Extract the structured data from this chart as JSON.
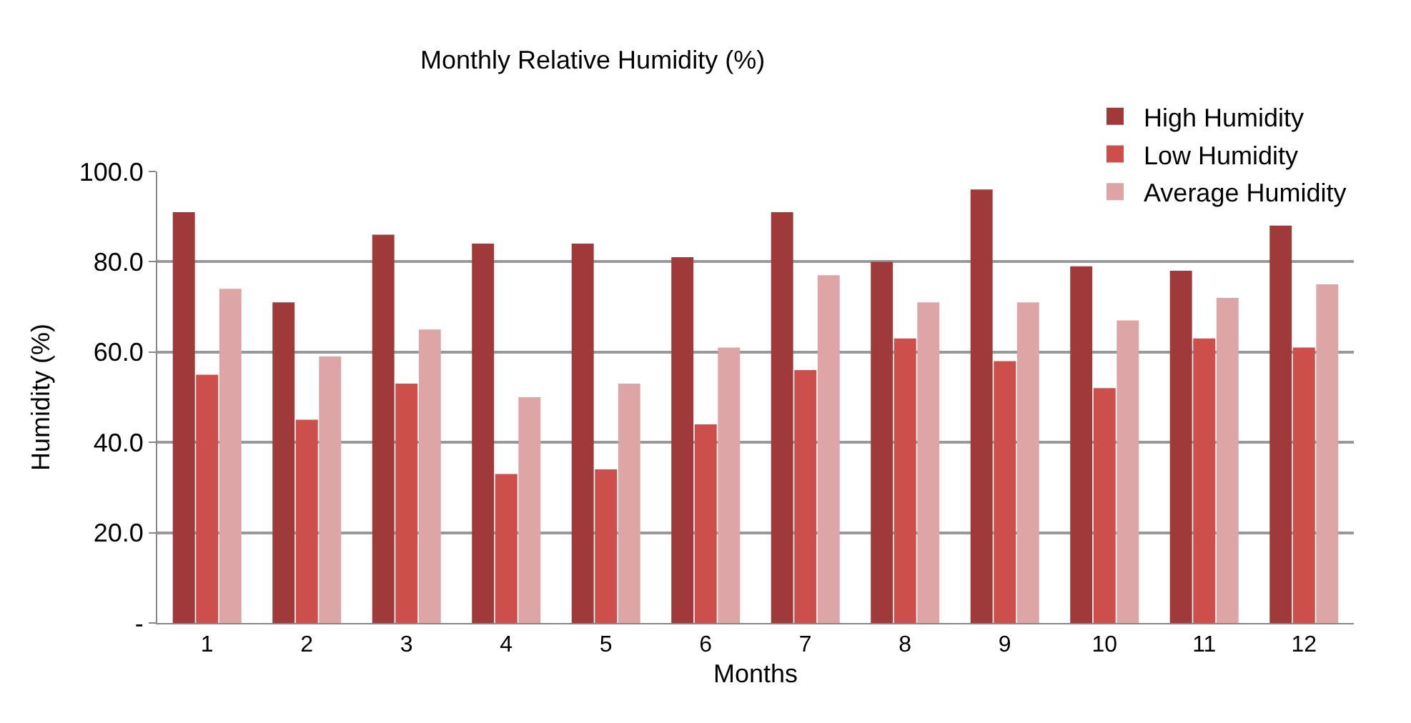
{
  "chart_data": {
    "type": "bar",
    "title": "Monthly Relative Humidity (%)",
    "xlabel": "Months",
    "ylabel": "Humidity (%)",
    "x": [
      1,
      2,
      3,
      4,
      5,
      6,
      7,
      8,
      9,
      10,
      11,
      12
    ],
    "series": [
      {
        "name": "High Humidity",
        "color": "#a0393a",
        "values": [
          91,
          71,
          86,
          84,
          84,
          81,
          91,
          80,
          96,
          79,
          78,
          88
        ]
      },
      {
        "name": "Low Humidity",
        "color": "#cc4f4c",
        "values": [
          55,
          45,
          53,
          33,
          34,
          44,
          56,
          63,
          58,
          52,
          63,
          61
        ]
      },
      {
        "name": "Average Humidity",
        "color": "#dda5a5",
        "values": [
          74,
          59,
          65,
          50,
          53,
          61,
          77,
          71,
          71,
          67,
          72,
          75
        ]
      }
    ],
    "xlim": [
      0.5,
      12.5
    ],
    "xticks": [
      1,
      2,
      3,
      4,
      5,
      6,
      7,
      8,
      9,
      10,
      11,
      12
    ],
    "ylim": [
      0,
      100
    ],
    "yticks": [
      {
        "value": 0,
        "label": "-"
      },
      {
        "value": 20,
        "label": "20.0"
      },
      {
        "value": 40,
        "label": "40.0"
      },
      {
        "value": 60,
        "label": "60.0"
      },
      {
        "value": 80,
        "label": "80.0"
      },
      {
        "value": 100,
        "label": "100.0"
      }
    ],
    "grid": "y",
    "legend": "top right"
  }
}
